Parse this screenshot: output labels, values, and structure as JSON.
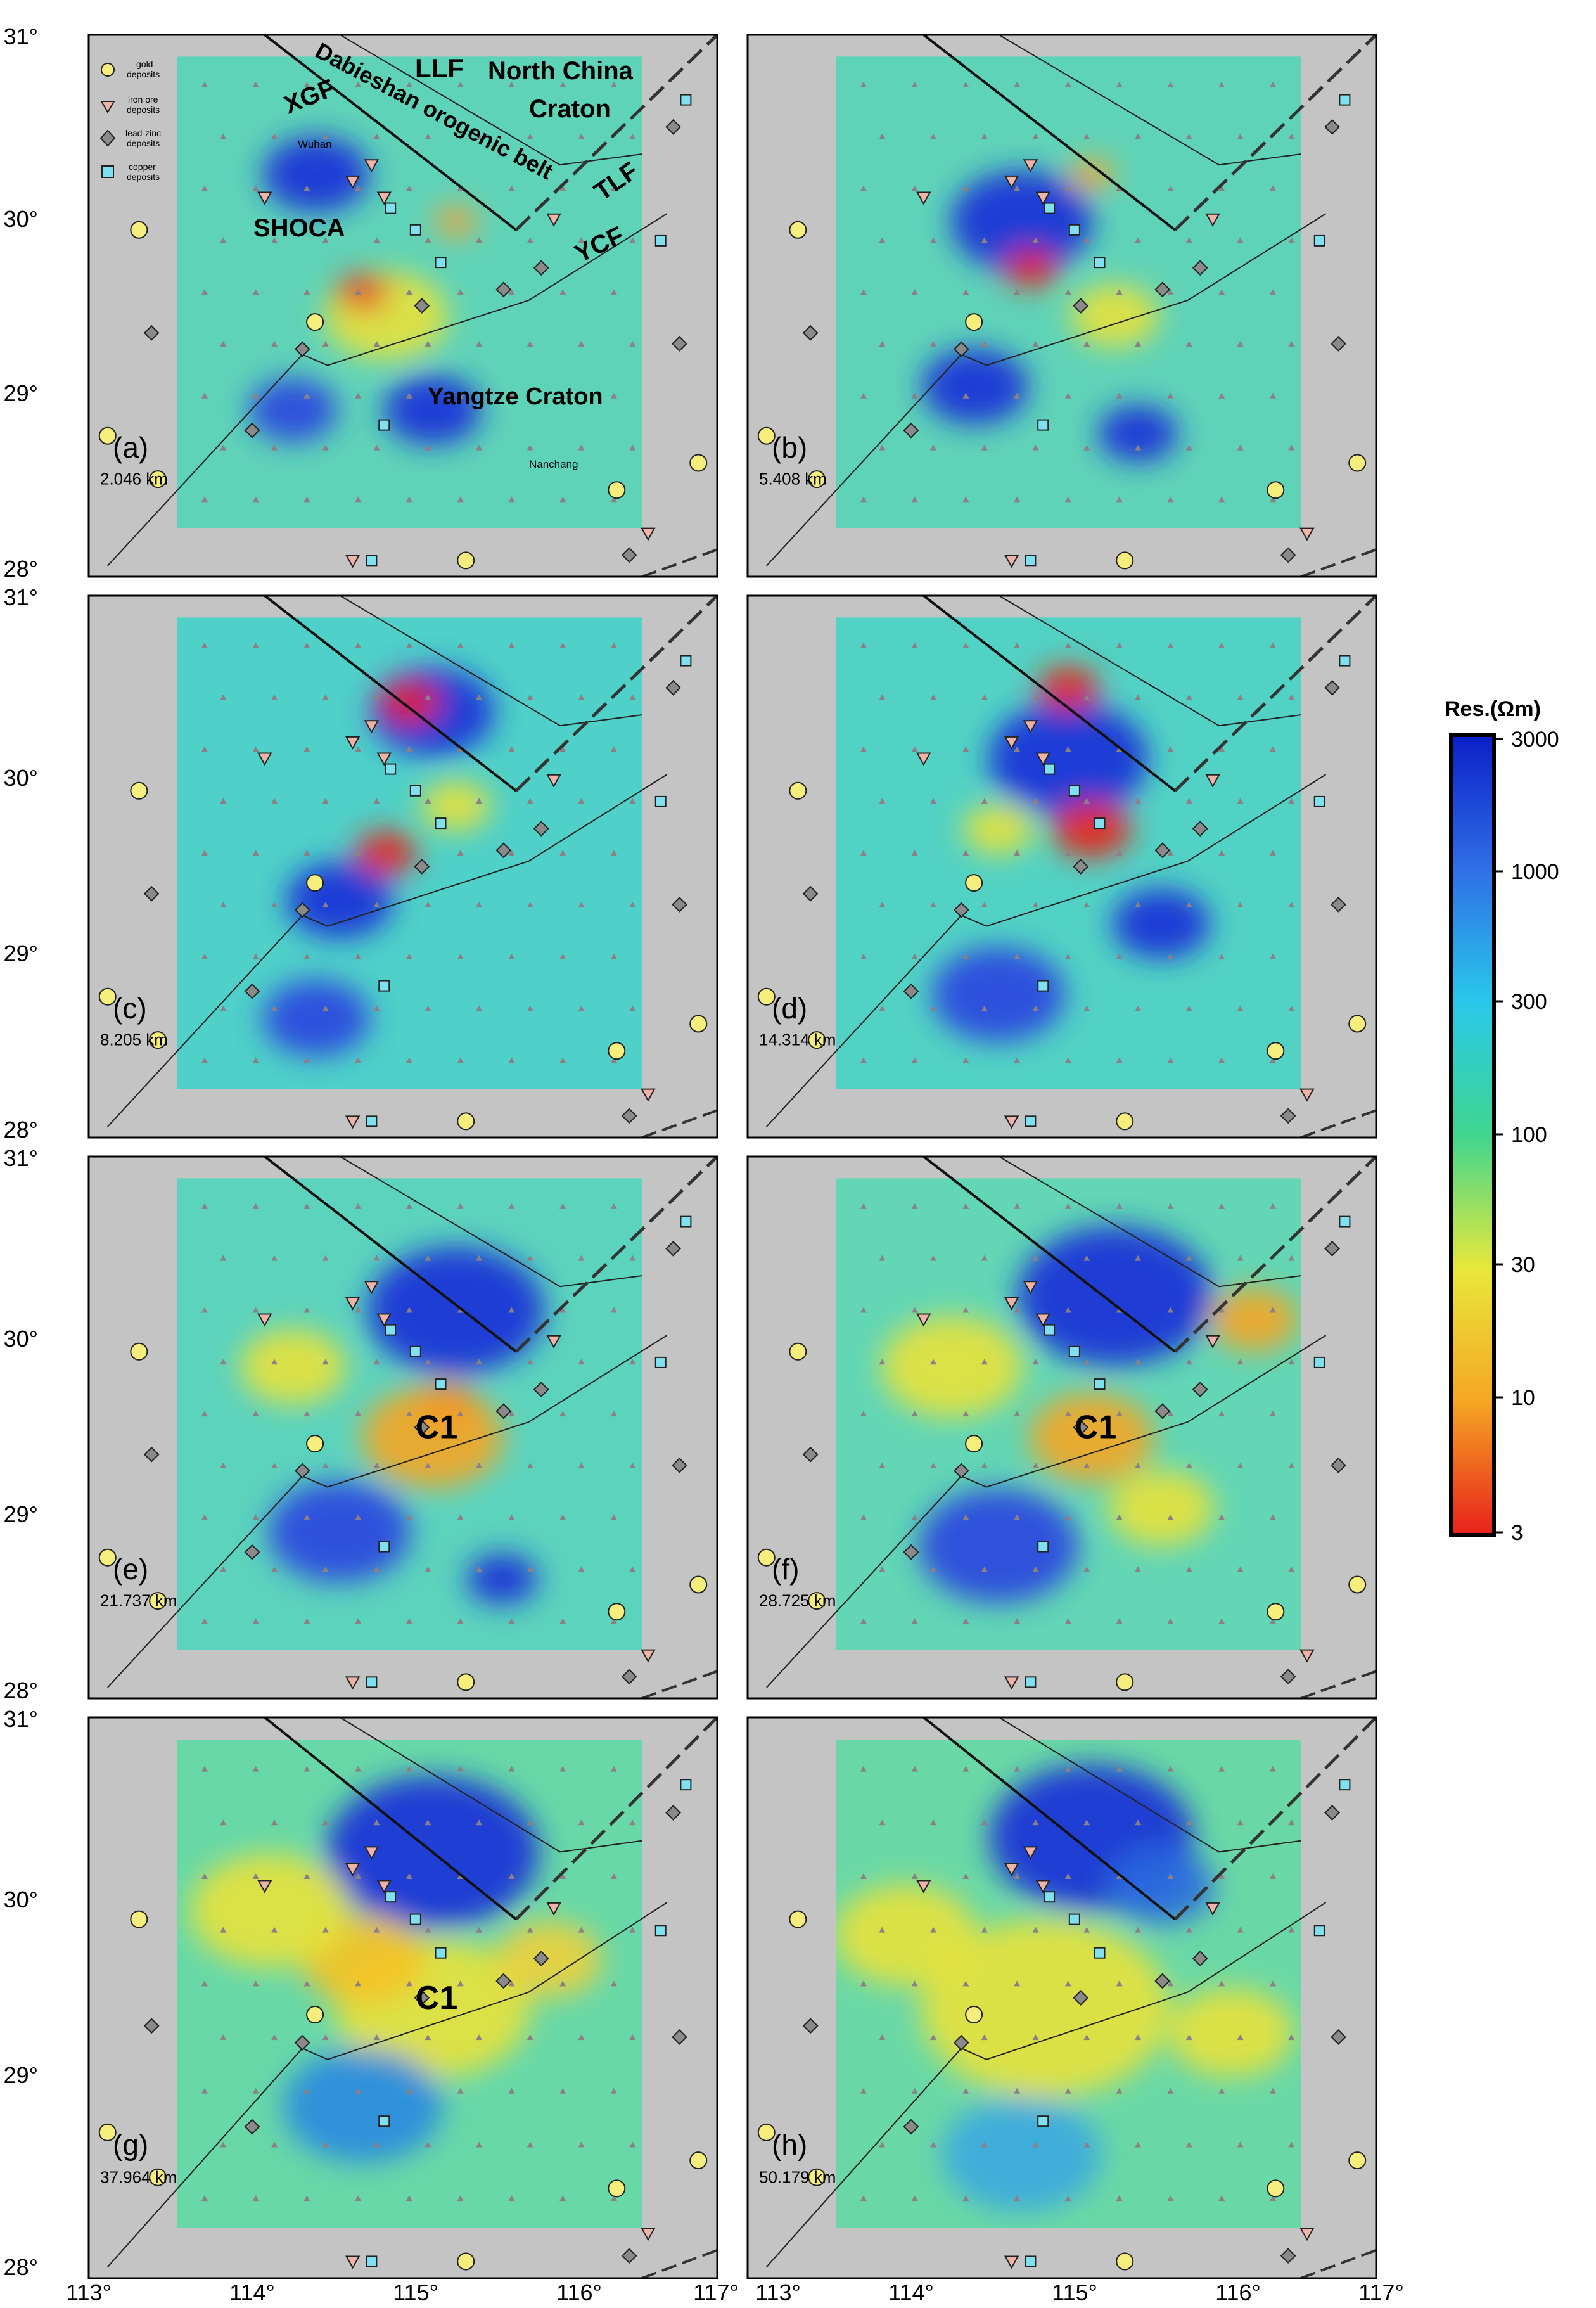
{
  "figure": {
    "lon_ticks_left": [
      "113°",
      "114°",
      "115°",
      "116°",
      "117°"
    ],
    "lon_ticks_right": [
      "113°",
      "114°",
      "115°",
      "116°",
      "117°"
    ],
    "lat_ticks": [
      "31°",
      "30°",
      "29°",
      "28°"
    ]
  },
  "panels": [
    {
      "letter": "(a)",
      "depth": "2.046 km",
      "anomaly": ""
    },
    {
      "letter": "(b)",
      "depth": "5.408 km",
      "anomaly": ""
    },
    {
      "letter": "(c)",
      "depth": "8.205 km",
      "anomaly": ""
    },
    {
      "letter": "(d)",
      "depth": "14.314 km",
      "anomaly": ""
    },
    {
      "letter": "(e)",
      "depth": "21.737 km",
      "anomaly": "C1"
    },
    {
      "letter": "(f)",
      "depth": "28.725 km",
      "anomaly": "C1"
    },
    {
      "letter": "(g)",
      "depth": "37.964 km",
      "anomaly": "C1"
    },
    {
      "letter": "(h)",
      "depth": "50.179 km",
      "anomaly": ""
    }
  ],
  "annotations": {
    "LLF": "LLF",
    "north_china_1": "North China",
    "north_china_2": "Craton",
    "dabieshan": "Dabieshan orogenic belt",
    "XGF": "XGF",
    "wuhan": "Wuhan",
    "TLF": "TLF",
    "SHOCA": "SHOCA",
    "YCF": "YCF",
    "yangtze": "Yangtze Craton",
    "nanchang": "Nanchang"
  },
  "legend": {
    "gold_1": "gold",
    "gold_2": "deposits",
    "iron_1": "iron ore",
    "iron_2": "deposits",
    "lead_1": "lead-zinc",
    "lead_2": "deposits",
    "copper_1": "copper",
    "copper_2": "deposits"
  },
  "colorbar": {
    "title": "Res.(Ωm)",
    "ticks": [
      "3000",
      "1000",
      "300",
      "100",
      "30",
      "10",
      "3"
    ],
    "colors": [
      "#0b1fc8",
      "#2f6fe6",
      "#29c8ea",
      "#3fd68f",
      "#e8e83a",
      "#f5a623",
      "#e8211b"
    ]
  },
  "colors": {
    "background_gray": "#c4c4c4",
    "gold": "#f6ee7c",
    "iron": "#f0b3a8",
    "leadzinc": "#8a8a8a",
    "copper": "#7fe1f0",
    "station": "#8d7f86"
  }
}
